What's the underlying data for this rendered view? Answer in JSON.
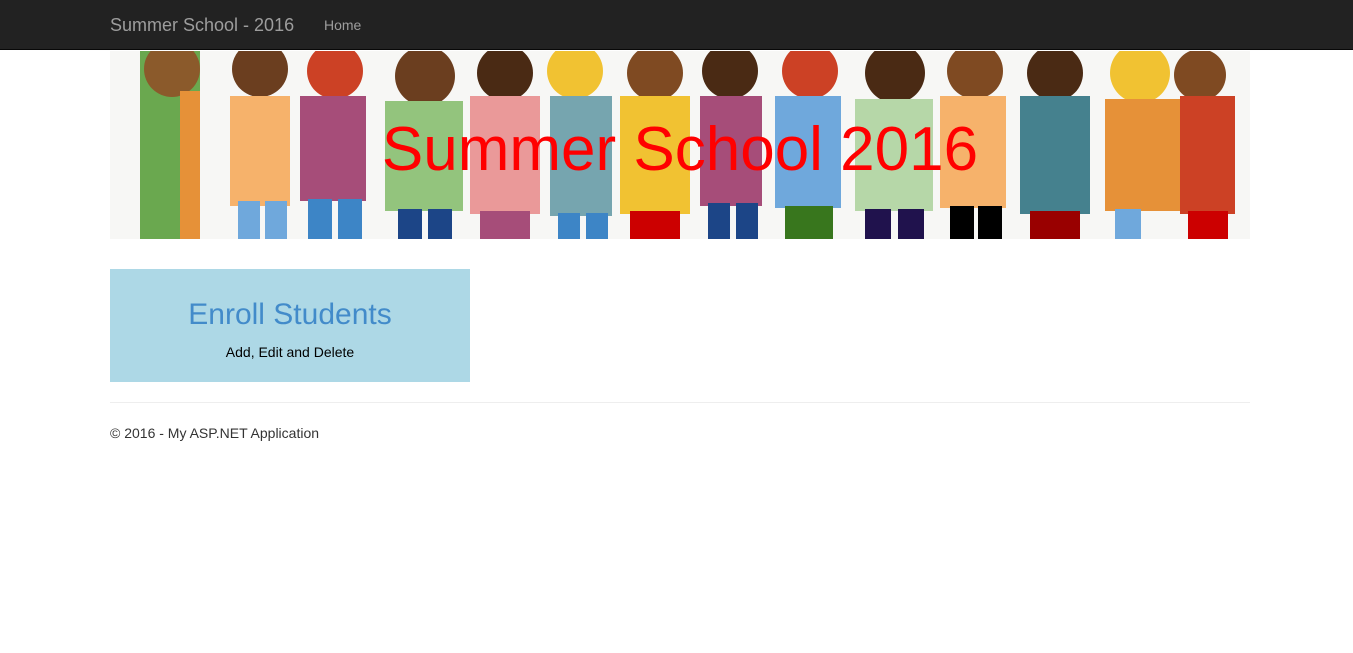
{
  "navbar": {
    "brand": "Summer School - 2016",
    "links": [
      {
        "label": "Home"
      }
    ],
    "background": "#222222",
    "link_color": "#9d9d9d"
  },
  "banner": {
    "title": "Summer School 2016",
    "title_color": "#ff0000"
  },
  "tiles": [
    {
      "title": "Enroll Students",
      "subtitle": "Add, Edit and Delete",
      "background": "#add8e6",
      "title_color": "#428bca"
    }
  ],
  "footer": {
    "text": "© 2016 - My ASP.NET Application"
  }
}
